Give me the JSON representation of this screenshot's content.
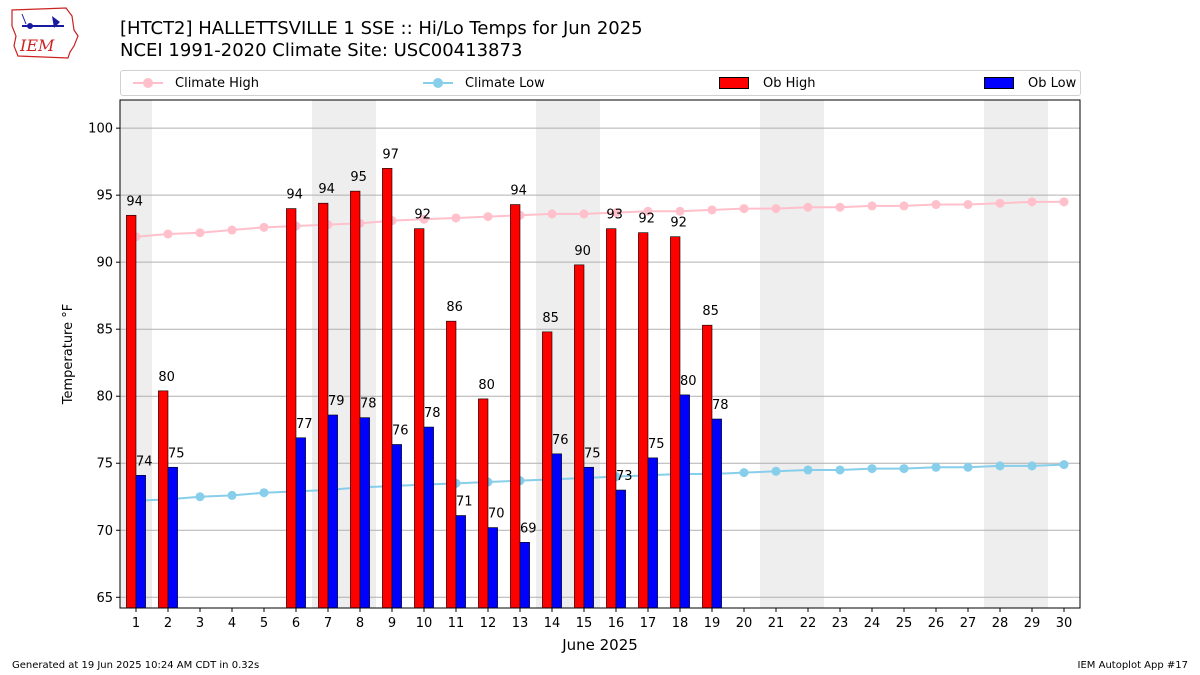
{
  "logo": {
    "text": "IEM"
  },
  "header": {
    "title": "[HTCT2] HALLETTSVILLE 1 SSE :: Hi/Lo Temps for Jun 2025",
    "subtitle": "NCEI 1991-2020 Climate Site: USC00413873"
  },
  "legend": {
    "climate_high": "Climate High",
    "climate_low": "Climate Low",
    "ob_high": "Ob High",
    "ob_low": "Ob Low"
  },
  "colors": {
    "ob_high": "#ff0000",
    "ob_low": "#0000ff",
    "climate_high": "#ffc0cb",
    "climate_low": "#87ceeb",
    "weekend_shade": "#eeeeee"
  },
  "chart_data": {
    "type": "bar",
    "xlabel": "June 2025",
    "ylabel": "Temperature °F",
    "ylim": [
      64.2,
      102.1
    ],
    "yticks": [
      65,
      70,
      75,
      80,
      85,
      90,
      95,
      100
    ],
    "grid": "horizontal",
    "legend_placement": "top",
    "days": [
      1,
      2,
      3,
      4,
      5,
      6,
      7,
      8,
      9,
      10,
      11,
      12,
      13,
      14,
      15,
      16,
      17,
      18,
      19,
      20,
      21,
      22,
      23,
      24,
      25,
      26,
      27,
      28,
      29,
      30
    ],
    "weekend_shading": [
      [
        1,
        1
      ],
      [
        7,
        8
      ],
      [
        14,
        15
      ],
      [
        21,
        22
      ],
      [
        28,
        29
      ]
    ],
    "series": [
      {
        "name": "Ob High",
        "kind": "bar",
        "x": [
          1,
          2,
          6,
          7,
          8,
          9,
          10,
          11,
          12,
          13,
          14,
          15,
          16,
          17,
          18,
          19
        ],
        "values": [
          93.5,
          80.4,
          94.0,
          94.4,
          95.3,
          97.0,
          92.5,
          85.6,
          79.8,
          94.3,
          84.8,
          89.8,
          92.5,
          92.2,
          91.9,
          85.3
        ],
        "labels": [
          "94",
          "80",
          "94",
          "94",
          "95",
          "97",
          "92",
          "86",
          "80",
          "94",
          "85",
          "90",
          "93",
          "92",
          "92",
          "85"
        ]
      },
      {
        "name": "Ob Low",
        "kind": "bar",
        "x": [
          1,
          2,
          6,
          7,
          8,
          9,
          10,
          11,
          12,
          13,
          14,
          15,
          16,
          17,
          18,
          19
        ],
        "values": [
          74.1,
          74.7,
          76.9,
          78.6,
          78.4,
          76.4,
          77.7,
          71.1,
          70.2,
          69.1,
          75.7,
          74.7,
          73.0,
          75.4,
          80.1,
          78.3
        ],
        "labels": [
          "74",
          "75",
          "77",
          "79",
          "78",
          "76",
          "78",
          "71",
          "70",
          "69",
          "76",
          "75",
          "73",
          "75",
          "80",
          "78"
        ]
      },
      {
        "name": "Climate High",
        "kind": "line",
        "x": [
          1,
          2,
          3,
          4,
          5,
          6,
          7,
          8,
          9,
          10,
          11,
          12,
          13,
          14,
          15,
          16,
          17,
          18,
          19,
          20,
          21,
          22,
          23,
          24,
          25,
          26,
          27,
          28,
          29,
          30
        ],
        "values": [
          91.9,
          92.1,
          92.2,
          92.4,
          92.6,
          92.7,
          92.8,
          92.9,
          93.1,
          93.2,
          93.3,
          93.4,
          93.5,
          93.6,
          93.6,
          93.7,
          93.8,
          93.8,
          93.9,
          94.0,
          94.0,
          94.1,
          94.1,
          94.2,
          94.2,
          94.3,
          94.3,
          94.4,
          94.5,
          94.5
        ]
      },
      {
        "name": "Climate Low",
        "kind": "line",
        "x": [
          1,
          2,
          3,
          4,
          5,
          6,
          7,
          8,
          9,
          10,
          11,
          12,
          13,
          14,
          15,
          16,
          17,
          18,
          19,
          20,
          21,
          22,
          23,
          24,
          25,
          26,
          27,
          28,
          29,
          30
        ],
        "values": [
          72.2,
          72.3,
          72.5,
          72.6,
          72.8,
          72.9,
          73.0,
          73.2,
          73.3,
          73.4,
          73.5,
          73.6,
          73.7,
          73.8,
          73.9,
          74.0,
          74.1,
          74.2,
          74.2,
          74.3,
          74.4,
          74.5,
          74.5,
          74.6,
          74.6,
          74.7,
          74.7,
          74.8,
          74.8,
          74.9
        ]
      }
    ]
  },
  "footer": {
    "generated": "Generated at 19 Jun 2025 10:24 AM CDT in 0.32s",
    "app": "IEM Autoplot App #17"
  }
}
